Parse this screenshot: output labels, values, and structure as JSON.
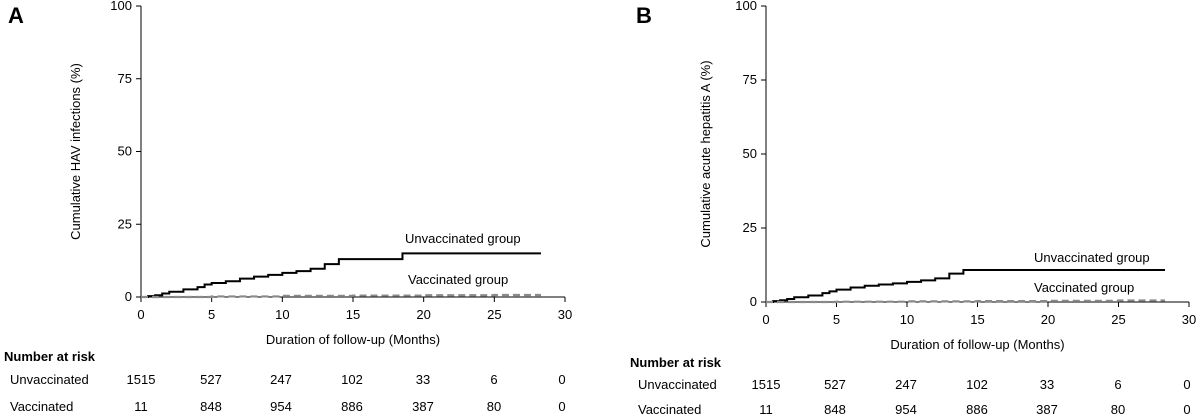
{
  "chart_data": [
    {
      "type": "line",
      "panel_label": "A",
      "xlabel": "Duration of follow-up (Months)",
      "ylabel": "Cumulative HAV infections (%)",
      "xlim": [
        0,
        30
      ],
      "ylim": [
        0,
        100
      ],
      "x_ticks": [
        0,
        5,
        10,
        15,
        20,
        25,
        30
      ],
      "y_ticks": [
        0,
        25,
        50,
        75,
        100
      ],
      "series": [
        {
          "name": "Unvaccinated group",
          "color": "#000000",
          "style": "solid",
          "x": [
            0,
            0.5,
            1,
            1.5,
            2,
            3,
            4,
            4.5,
            5,
            6,
            7,
            8,
            9,
            10,
            11,
            12,
            13,
            14,
            18.5,
            28.3
          ],
          "y": [
            0,
            0.3,
            0.6,
            1.2,
            1.8,
            2.6,
            3.4,
            4.3,
            4.8,
            5.4,
            6.3,
            7.0,
            7.6,
            8.3,
            8.9,
            9.7,
            11.3,
            13.0,
            15.0,
            15.0
          ]
        },
        {
          "name": "Vaccinated group",
          "color": "#8a8a8a",
          "style": "dashed",
          "x": [
            0,
            5,
            10,
            15,
            20,
            25,
            28.3
          ],
          "y": [
            0,
            0.2,
            0.4,
            0.5,
            0.6,
            0.7,
            0.7
          ]
        }
      ],
      "risk_table": {
        "header": "Number at risk",
        "rows": [
          {
            "label": "Unvaccinated",
            "values": [
              "1515",
              "527",
              "247",
              "102",
              "33",
              "6",
              "0"
            ]
          },
          {
            "label": "Vaccinated",
            "values": [
              "11",
              "848",
              "954",
              "886",
              "387",
              "80",
              "0"
            ]
          }
        ]
      }
    },
    {
      "type": "line",
      "panel_label": "B",
      "xlabel": "Duration of follow-up (Months)",
      "ylabel": "Cumulative acute hepatitis A (%)",
      "xlim": [
        0,
        30
      ],
      "ylim": [
        0,
        100
      ],
      "x_ticks": [
        0,
        5,
        10,
        15,
        20,
        25,
        30
      ],
      "y_ticks": [
        0,
        25,
        50,
        75,
        100
      ],
      "series": [
        {
          "name": "Unvaccinated group",
          "color": "#000000",
          "style": "solid",
          "x": [
            0,
            0.5,
            1,
            1.5,
            2,
            3,
            4,
            4.5,
            5,
            6,
            7,
            8,
            9,
            10,
            11,
            12,
            13,
            14,
            28.3
          ],
          "y": [
            0,
            0.3,
            0.6,
            1.0,
            1.6,
            2.2,
            3.0,
            3.6,
            4.2,
            4.9,
            5.5,
            5.9,
            6.3,
            6.8,
            7.3,
            8.0,
            9.6,
            10.8,
            10.8
          ]
        },
        {
          "name": "Vaccinated group",
          "color": "#8a8a8a",
          "style": "dashed",
          "x": [
            0,
            5,
            10,
            15,
            20,
            25,
            28.3
          ],
          "y": [
            0,
            0.1,
            0.2,
            0.3,
            0.4,
            0.5,
            0.5
          ]
        }
      ],
      "risk_table": {
        "header": "Number at risk",
        "rows": [
          {
            "label": "Unvaccinated",
            "values": [
              "1515",
              "527",
              "247",
              "102",
              "33",
              "6",
              "0"
            ]
          },
          {
            "label": "Vaccinated",
            "values": [
              "11",
              "848",
              "954",
              "886",
              "387",
              "80",
              "0"
            ]
          }
        ]
      }
    }
  ]
}
